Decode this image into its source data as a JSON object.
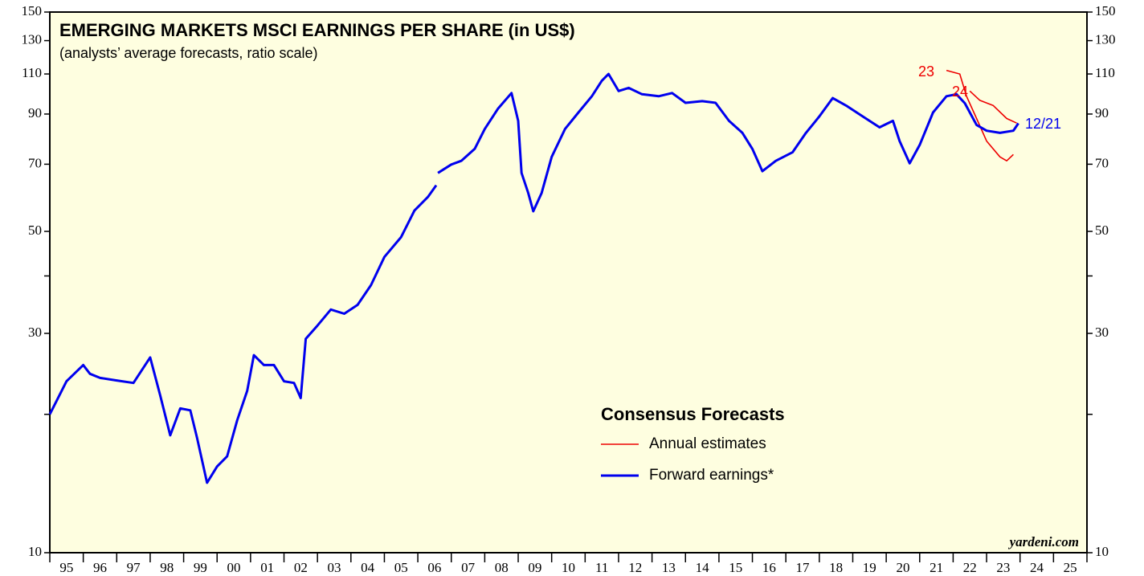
{
  "chart_data": {
    "type": "line",
    "title": "EMERGING MARKETS MSCI EARNINGS PER SHARE (in US$)",
    "subtitle": "(analysts’ average forecasts, ratio scale)",
    "legend_title": "Consensus Forecasts",
    "source": "yardeni.com",
    "log_scale": true,
    "background": "#fefee0",
    "ylim": [
      10,
      150
    ],
    "yticks": [
      10,
      30,
      50,
      70,
      90,
      110,
      130,
      150
    ],
    "yminorticks": [
      20,
      40
    ],
    "y2lim": [
      10,
      150
    ],
    "y2ticks": [
      10,
      30,
      50,
      70,
      90,
      110,
      130,
      150
    ],
    "xlim": [
      1995,
      2026
    ],
    "categories": [
      "95",
      "96",
      "97",
      "98",
      "99",
      "00",
      "01",
      "02",
      "03",
      "04",
      "05",
      "06",
      "07",
      "08",
      "09",
      "10",
      "11",
      "12",
      "13",
      "14",
      "15",
      "16",
      "17",
      "18",
      "19",
      "20",
      "21",
      "22",
      "23",
      "24",
      "25"
    ],
    "annotations": [
      {
        "text": "23",
        "color": "#ee0000"
      },
      {
        "text": "24",
        "color": "#ee0000"
      },
      {
        "text": "12/21",
        "color": "#0000ee"
      }
    ],
    "series": [
      {
        "name": "Annual estimates",
        "color": "#ee0000",
        "x": [
          2021.8,
          2022.2,
          2022.4,
          2022.7,
          2023.0,
          2023.4,
          2023.6,
          2023.8,
          null,
          2022.5,
          2022.8,
          2023.2,
          2023.6,
          2023.9
        ],
        "values": [
          112,
          110,
          98.4,
          88,
          78.6,
          72.6,
          71.2,
          73.5,
          null,
          101,
          96.4,
          93.9,
          88,
          86
        ]
      },
      {
        "name": "Forward earnings*",
        "color": "#0000ee",
        "x": [
          1995.0,
          1995.5,
          1996.0,
          1996.2,
          1996.5,
          1997.0,
          1997.5,
          1998.0,
          1998.3,
          1998.6,
          1998.9,
          1999.2,
          1999.4,
          1999.7,
          2000.0,
          2000.3,
          2000.6,
          2000.9,
          2001.1,
          2001.4,
          2001.7,
          2002.0,
          2002.3,
          2002.5,
          2002.65,
          2003.0,
          2003.4,
          2003.8,
          2004.2,
          2004.6,
          2005.0,
          2005.5,
          2005.9,
          2006.3,
          2006.55,
          null,
          2006.6,
          2007.0,
          2007.3,
          2007.7,
          2008.0,
          2008.4,
          2008.8,
          2009.0,
          2009.1,
          2009.3,
          2009.45,
          2009.7,
          2010.0,
          2010.4,
          2010.8,
          2011.2,
          2011.5,
          2011.7,
          2012.0,
          2012.3,
          2012.7,
          2013.2,
          2013.6,
          2014.0,
          2014.5,
          2014.9,
          2015.3,
          2015.7,
          2016.0,
          2016.3,
          2016.7,
          2017.2,
          2017.6,
          2018.0,
          2018.4,
          2018.8,
          2019.3,
          2019.8,
          2020.2,
          2020.4,
          2020.7,
          2021.0,
          2021.4,
          2021.8,
          2022.1,
          2022.35,
          2022.7,
          2023.0,
          2023.4,
          2023.8,
          2023.95
        ],
        "values": [
          20,
          23.6,
          25.6,
          24.5,
          24,
          23.7,
          23.4,
          26.6,
          22,
          18,
          20.6,
          20.4,
          17.8,
          14.2,
          15.4,
          16.2,
          19.4,
          22.5,
          26.9,
          25.6,
          25.6,
          23.6,
          23.4,
          21.7,
          29.2,
          31.2,
          33.8,
          33.1,
          34.6,
          38.2,
          44,
          48.6,
          55.5,
          59.4,
          63,
          null,
          67,
          69.9,
          71.2,
          75.6,
          83.5,
          92.5,
          100,
          87,
          67,
          60.6,
          55.3,
          60.6,
          72.6,
          83.5,
          90.7,
          98.4,
          106.3,
          110,
          101,
          102.6,
          99.4,
          98.4,
          100,
          95.2,
          96,
          95.2,
          87,
          81.9,
          75.6,
          67.6,
          71.2,
          74.3,
          81.9,
          88.9,
          97.5,
          93.9,
          88.9,
          84.2,
          87,
          78.6,
          70.3,
          77.1,
          90.7,
          98.4,
          99.4,
          95,
          85.2,
          82.8,
          81.9,
          82.8,
          85.9
        ]
      }
    ]
  }
}
